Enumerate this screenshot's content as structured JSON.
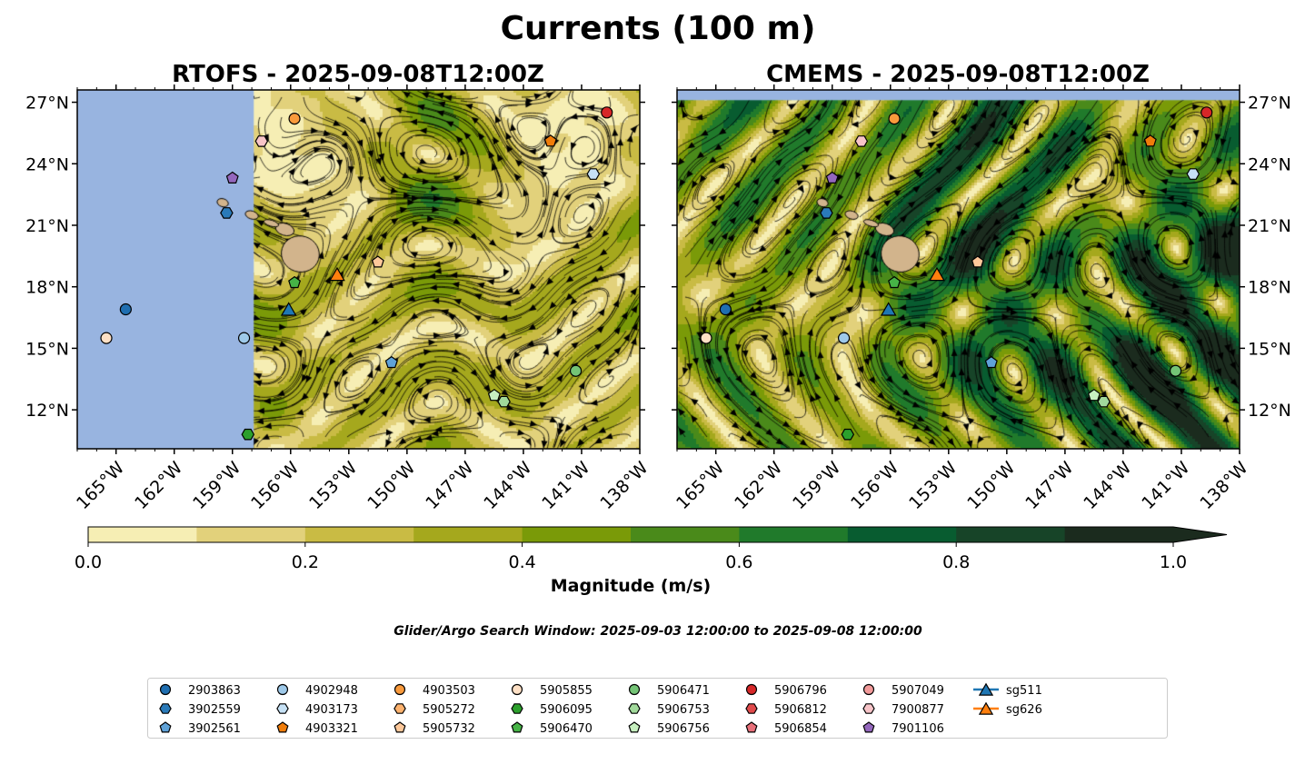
{
  "title": "Currents (100 m)",
  "panels": [
    {
      "title": "RTOFS - 2025-09-08T12:00Z",
      "land_mask_west_of_lon": -157.9
    },
    {
      "title": "CMEMS - 2025-09-08T12:00Z",
      "land_mask_north_of_lat": 27.1
    }
  ],
  "map": {
    "lon_range": [
      -167,
      -138
    ],
    "lat_range": [
      10.1,
      27.6
    ],
    "lon_ticks": [
      -165,
      -162,
      -159,
      -156,
      -153,
      -150,
      -147,
      -144,
      -141,
      -138
    ],
    "lon_tick_labels": [
      "165°W",
      "162°W",
      "159°W",
      "156°W",
      "153°W",
      "150°W",
      "147°W",
      "144°W",
      "141°W",
      "138°W"
    ],
    "lat_ticks": [
      27,
      24,
      21,
      18,
      15,
      12
    ],
    "lat_tick_labels": [
      "27°N",
      "24°N",
      "21°N",
      "18°N",
      "15°N",
      "12°N"
    ]
  },
  "colorbar": {
    "label": "Magnitude (m/s)",
    "levels": [
      0,
      0.1,
      0.2,
      0.3,
      0.4,
      0.5,
      0.6,
      0.7,
      0.8,
      0.9,
      1.0
    ],
    "colors": [
      "#f6eeb4",
      "#e2d17b",
      "#c9bb44",
      "#a5a81d",
      "#7a9a08",
      "#4a8a1a",
      "#207a2b",
      "#085c30",
      "#174428",
      "#1b2b1e"
    ],
    "extend": "max",
    "tick_values": [
      0.0,
      0.2,
      0.4,
      0.6,
      0.8,
      1.0
    ],
    "tick_labels": [
      "0.0",
      "0.2",
      "0.4",
      "0.6",
      "0.8",
      "1.0"
    ]
  },
  "search_window": "Glider/Argo Search Window: 2025-09-03 12:00:00 to 2025-09-08 12:00:00",
  "legend": [
    {
      "label": "2903863",
      "shape": "circle",
      "color": "#1f6eb0",
      "lon": -164.5,
      "lat": 16.9
    },
    {
      "label": "3902559",
      "shape": "hexagon",
      "color": "#2a7ab9",
      "lon": -159.3,
      "lat": 21.6
    },
    {
      "label": "3902561",
      "shape": "pentagon",
      "color": "#5fa2d8",
      "lon": -150.8,
      "lat": 14.3
    },
    {
      "label": "4902948",
      "shape": "circle",
      "color": "#9ec9e9",
      "lon": -158.4,
      "lat": 15.5
    },
    {
      "label": "4903173",
      "shape": "hexagon",
      "color": "#c6e1f5",
      "lon": -140.4,
      "lat": 23.5
    },
    {
      "label": "4903321",
      "shape": "pentagon",
      "color": "#f07d0a",
      "lon": -142.6,
      "lat": 25.1
    },
    {
      "label": "4903503",
      "shape": "circle",
      "color": "#f99a3c",
      "lon": -155.8,
      "lat": 26.2
    },
    {
      "label": "5905272",
      "shape": "hexagon",
      "color": "#fdb26e"
    },
    {
      "label": "5905732",
      "shape": "pentagon",
      "color": "#fdc89a",
      "lon": -151.5,
      "lat": 19.2
    },
    {
      "label": "5905855",
      "shape": "circle",
      "color": "#fee0c5",
      "lon": -165.5,
      "lat": 15.5
    },
    {
      "label": "5906095",
      "shape": "hexagon",
      "color": "#2ca02c",
      "lon": -158.2,
      "lat": 10.8
    },
    {
      "label": "5906470",
      "shape": "pentagon",
      "color": "#46b346",
      "lon": -155.8,
      "lat": 18.2
    },
    {
      "label": "5906471",
      "shape": "circle",
      "color": "#74c476",
      "lon": -141.3,
      "lat": 13.9
    },
    {
      "label": "5906753",
      "shape": "hexagon",
      "color": "#a1d99b",
      "lon": -145.0,
      "lat": 12.4
    },
    {
      "label": "5906756",
      "shape": "pentagon",
      "color": "#c7f0c0",
      "lon": -145.5,
      "lat": 12.7
    },
    {
      "label": "5906796",
      "shape": "circle",
      "color": "#d62728",
      "lon": -139.7,
      "lat": 26.5
    },
    {
      "label": "5906812",
      "shape": "hexagon",
      "color": "#e04a4b"
    },
    {
      "label": "5906854",
      "shape": "pentagon",
      "color": "#e8707a"
    },
    {
      "label": "5907049",
      "shape": "circle",
      "color": "#f29a9a"
    },
    {
      "label": "7900877",
      "shape": "hexagon",
      "color": "#f7c4c8",
      "lon": -157.5,
      "lat": 25.1
    },
    {
      "label": "7901106",
      "shape": "pentagon",
      "color": "#9467bd",
      "lon": -159.0,
      "lat": 23.3
    },
    {
      "label": "sg511",
      "shape": "triangle",
      "color": "#1f77b4",
      "line": true,
      "lon": -156.1,
      "lat": 16.9
    },
    {
      "label": "sg626",
      "shape": "triangle",
      "color": "#ff7f0e",
      "line": true,
      "lon": -153.6,
      "lat": 18.6
    }
  ]
}
